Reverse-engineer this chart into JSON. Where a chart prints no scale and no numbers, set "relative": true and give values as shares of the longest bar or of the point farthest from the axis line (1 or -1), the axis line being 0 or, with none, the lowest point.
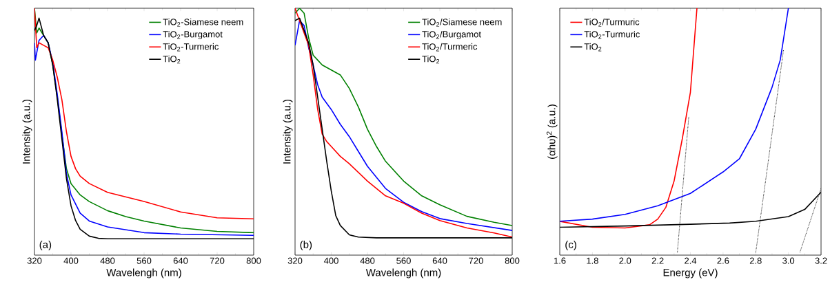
{
  "chart_data": [
    {
      "type": "line",
      "relative": true,
      "xlabel": "Wavelengh (nm)",
      "ylabel": "Intensity (a.u.)",
      "xlim": [
        320,
        800
      ],
      "xticks": [
        320,
        400,
        480,
        560,
        640,
        720,
        800
      ],
      "legend": "top right",
      "annotations": [
        "(a)"
      ],
      "series": [
        {
          "name": "TiO$_{2}$-Siamese neem",
          "color": "#008000",
          "x": [
            320,
            325,
            330,
            340,
            350,
            360,
            370,
            380,
            390,
            400,
            420,
            440,
            480,
            520,
            560,
            640,
            720,
            800
          ],
          "values": [
            1.0,
            0.9,
            0.92,
            0.89,
            0.86,
            0.77,
            0.64,
            0.49,
            0.35,
            0.29,
            0.244,
            0.217,
            0.18,
            0.156,
            0.138,
            0.11,
            0.096,
            0.091
          ]
        },
        {
          "name": "TiO$_{2}$-Burgamot",
          "color": "#0000ff",
          "x": [
            320,
            322,
            330,
            340,
            350,
            360,
            370,
            380,
            390,
            400,
            420,
            440,
            480,
            560,
            640,
            800
          ],
          "values": [
            0.86,
            0.79,
            0.87,
            0.89,
            0.86,
            0.78,
            0.65,
            0.5,
            0.33,
            0.244,
            0.17,
            0.138,
            0.114,
            0.091,
            0.085,
            0.08
          ]
        },
        {
          "name": "TiO$_{2}$-Turmeric",
          "color": "#ff0000",
          "x": [
            320,
            325,
            330,
            340,
            350,
            360,
            370,
            380,
            390,
            400,
            410,
            420,
            440,
            480,
            560,
            640,
            720,
            800
          ],
          "values": [
            1.0,
            0.84,
            0.86,
            0.85,
            0.84,
            0.79,
            0.72,
            0.63,
            0.5,
            0.4,
            0.35,
            0.32,
            0.29,
            0.254,
            0.217,
            0.175,
            0.151,
            0.147
          ]
        },
        {
          "name": "TiO$_{2}$",
          "color": "#000000",
          "x": [
            320,
            325,
            330,
            340,
            350,
            360,
            370,
            380,
            390,
            400,
            410,
            420,
            440,
            460,
            480,
            800
          ],
          "values": [
            0.91,
            0.93,
            0.96,
            0.89,
            0.86,
            0.77,
            0.63,
            0.47,
            0.31,
            0.2,
            0.14,
            0.105,
            0.077,
            0.068,
            0.066,
            0.066
          ]
        }
      ]
    },
    {
      "type": "line",
      "relative": true,
      "xlabel": "Wavelengh (nm)",
      "ylabel": "Intensity (a.u.)",
      "xlim": [
        320,
        800
      ],
      "xticks": [
        320,
        400,
        480,
        560,
        640,
        720,
        800
      ],
      "legend": "top right",
      "annotations": [
        "(b)"
      ],
      "series": [
        {
          "name": "TiO$_{2}$/Siamese neem",
          "color": "#008000",
          "x": [
            320,
            330,
            340,
            350,
            360,
            370,
            380,
            400,
            420,
            440,
            460,
            480,
            500,
            520,
            560,
            600,
            640,
            700,
            760,
            800
          ],
          "values": [
            0.98,
            1.0,
            0.98,
            0.88,
            0.81,
            0.79,
            0.77,
            0.75,
            0.73,
            0.675,
            0.6,
            0.51,
            0.44,
            0.38,
            0.3,
            0.24,
            0.204,
            0.157,
            0.133,
            0.12
          ]
        },
        {
          "name": "TiO$_{2}$/Burgamot",
          "color": "#0000ff",
          "x": [
            320,
            330,
            340,
            350,
            360,
            370,
            380,
            400,
            420,
            440,
            460,
            480,
            520,
            560,
            600,
            640,
            700,
            800
          ],
          "values": [
            0.85,
            0.95,
            0.93,
            0.84,
            0.77,
            0.69,
            0.64,
            0.59,
            0.53,
            0.48,
            0.42,
            0.36,
            0.27,
            0.214,
            0.176,
            0.148,
            0.128,
            0.1
          ]
        },
        {
          "name": "TiO$_{2}$/Turmeric",
          "color": "#ff0000",
          "x": [
            320,
            330,
            340,
            350,
            360,
            370,
            380,
            390,
            400,
            420,
            440,
            480,
            520,
            560,
            600,
            640,
            700,
            760,
            800
          ],
          "values": [
            1.0,
            0.95,
            0.9,
            0.85,
            0.73,
            0.59,
            0.49,
            0.46,
            0.44,
            0.4,
            0.37,
            0.3,
            0.24,
            0.21,
            0.17,
            0.14,
            0.11,
            0.09,
            0.073
          ]
        },
        {
          "name": "TiO$_{2}$",
          "color": "#000000",
          "x": [
            320,
            330,
            340,
            350,
            360,
            370,
            380,
            390,
            400,
            410,
            420,
            440,
            460,
            500,
            800
          ],
          "values": [
            0.95,
            0.96,
            0.91,
            0.86,
            0.77,
            0.64,
            0.51,
            0.38,
            0.26,
            0.16,
            0.12,
            0.082,
            0.073,
            0.07,
            0.07
          ]
        }
      ]
    },
    {
      "type": "line",
      "relative": true,
      "xlabel": "Energy (eV)",
      "ylabel": "(αhυ)$^{2}$ (a.u.)",
      "xlim": [
        1.6,
        3.2
      ],
      "xticks": [
        1.6,
        1.8,
        {
          "value": 2.0,
          "label": "2.0"
        },
        2.2,
        2.4,
        2.6,
        2.8,
        {
          "value": 3.0,
          "label": "3.0"
        },
        3.2
      ],
      "legend": "top left",
      "annotations": [
        "(c)"
      ],
      "series": [
        {
          "name": "TiO$_{2}$/Turmuric",
          "color": "#ff0000",
          "x": [
            1.6,
            1.8,
            2.0,
            2.15,
            2.2,
            2.25,
            2.3,
            2.35,
            2.4,
            2.44
          ],
          "values": [
            0.137,
            0.113,
            0.11,
            0.123,
            0.146,
            0.194,
            0.3,
            0.47,
            0.66,
            1.0
          ]
        },
        {
          "name": "TiO$_{2}$-Turmuric",
          "color": "#0000ff",
          "x": [
            1.6,
            1.8,
            2.0,
            2.2,
            2.4,
            2.6,
            2.7,
            2.8,
            2.9,
            2.95,
            3.0
          ],
          "values": [
            0.137,
            0.146,
            0.165,
            0.2,
            0.25,
            0.337,
            0.39,
            0.51,
            0.68,
            0.79,
            1.0
          ]
        },
        {
          "name": "TiO$_{2}$",
          "color": "#000000",
          "x": [
            1.6,
            2.0,
            2.4,
            2.64,
            2.8,
            3.0,
            3.1,
            3.2
          ],
          "values": [
            0.113,
            0.118,
            0.125,
            0.13,
            0.137,
            0.156,
            0.185,
            0.255
          ]
        },
        {
          "type": "line",
          "line_style": "dotted",
          "color": "#000000",
          "x": [
            2.39,
            2.32
          ],
          "values": [
            0.56,
            0.01
          ]
        },
        {
          "type": "line",
          "line_style": "dotted",
          "color": "#000000",
          "x": [
            2.97,
            2.8
          ],
          "values": [
            0.83,
            0.01
          ]
        },
        {
          "type": "line",
          "line_style": "dotted",
          "color": "#000000",
          "x": [
            3.2,
            3.07
          ],
          "values": [
            0.27,
            0.01
          ]
        }
      ]
    }
  ]
}
